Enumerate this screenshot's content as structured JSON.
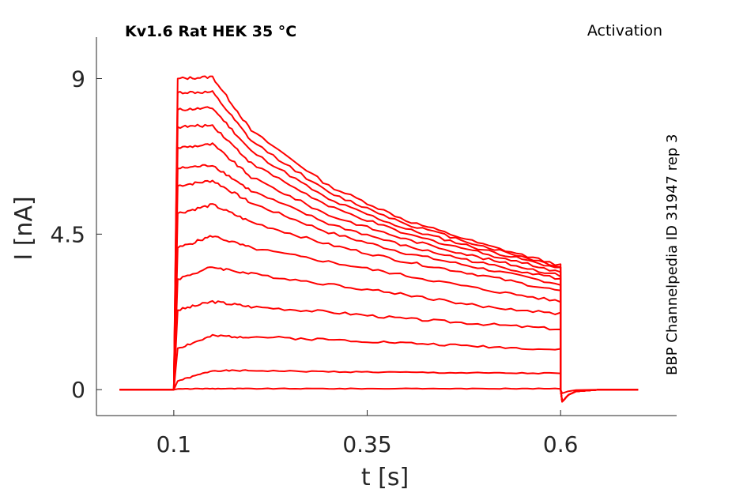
{
  "chart_data": {
    "type": "line",
    "title": "Kv1.6  Rat  HEK  35 °C",
    "title_right": "Activation",
    "side_label": "BBP Channelpedia ID 31947 rep 3",
    "xlabel": "t [s]",
    "ylabel": "I [nA]",
    "xlim": [
      0.0,
      0.75
    ],
    "ylim": [
      -0.75,
      10.2
    ],
    "xticks": [
      0.1,
      0.35,
      0.6
    ],
    "xtick_labels": [
      "0.1",
      "0.35",
      "0.6"
    ],
    "yticks": [
      0,
      4.5,
      9
    ],
    "ytick_labels": [
      "0",
      "4.5",
      "9"
    ],
    "grid": false,
    "color": "#ff0000",
    "stim_on": 0.1,
    "stim_off": 0.6,
    "x": [
      0.1,
      0.105,
      0.15,
      0.2,
      0.3,
      0.4,
      0.5,
      0.6
    ],
    "series": [
      {
        "values": [
          0.0,
          0.02,
          0.03,
          0.03,
          0.03,
          0.03,
          0.03,
          0.03
        ]
      },
      {
        "values": [
          0.0,
          0.25,
          0.55,
          0.55,
          0.52,
          0.5,
          0.48,
          0.47
        ]
      },
      {
        "values": [
          0.0,
          1.2,
          1.55,
          1.53,
          1.45,
          1.35,
          1.25,
          1.15
        ]
      },
      {
        "values": [
          0.0,
          2.3,
          2.55,
          2.4,
          2.25,
          2.05,
          1.9,
          1.75
        ]
      },
      {
        "values": [
          0.0,
          3.2,
          3.55,
          3.35,
          3.05,
          2.75,
          2.4,
          2.2
        ]
      },
      {
        "values": [
          0.0,
          4.1,
          4.45,
          4.1,
          3.7,
          3.3,
          2.9,
          2.55
        ]
      },
      {
        "values": [
          0.0,
          5.1,
          5.35,
          4.85,
          4.2,
          3.7,
          3.3,
          2.85
        ]
      },
      {
        "values": [
          0.0,
          5.9,
          6.05,
          5.4,
          4.55,
          3.95,
          3.5,
          3.05
        ]
      },
      {
        "values": [
          0.0,
          6.4,
          6.5,
          5.75,
          4.8,
          4.15,
          3.65,
          3.2
        ]
      },
      {
        "values": [
          0.0,
          7.0,
          7.1,
          6.15,
          5.05,
          4.35,
          3.8,
          3.3
        ]
      },
      {
        "values": [
          0.0,
          7.6,
          7.65,
          6.55,
          5.3,
          4.5,
          3.95,
          3.4
        ]
      },
      {
        "values": [
          0.0,
          8.1,
          8.15,
          6.9,
          5.5,
          4.65,
          4.05,
          3.5
        ]
      },
      {
        "values": [
          0.0,
          8.6,
          8.6,
          7.2,
          5.7,
          4.8,
          4.15,
          3.55
        ]
      },
      {
        "values": [
          0.0,
          9.0,
          9.05,
          7.5,
          5.9,
          4.9,
          4.2,
          3.6
        ]
      }
    ],
    "tail": {
      "x": [
        0.6,
        0.602,
        0.61,
        0.62,
        0.65,
        0.7
      ],
      "values": [
        0.0,
        -0.35,
        -0.15,
        -0.05,
        0.0,
        0.0
      ]
    }
  }
}
